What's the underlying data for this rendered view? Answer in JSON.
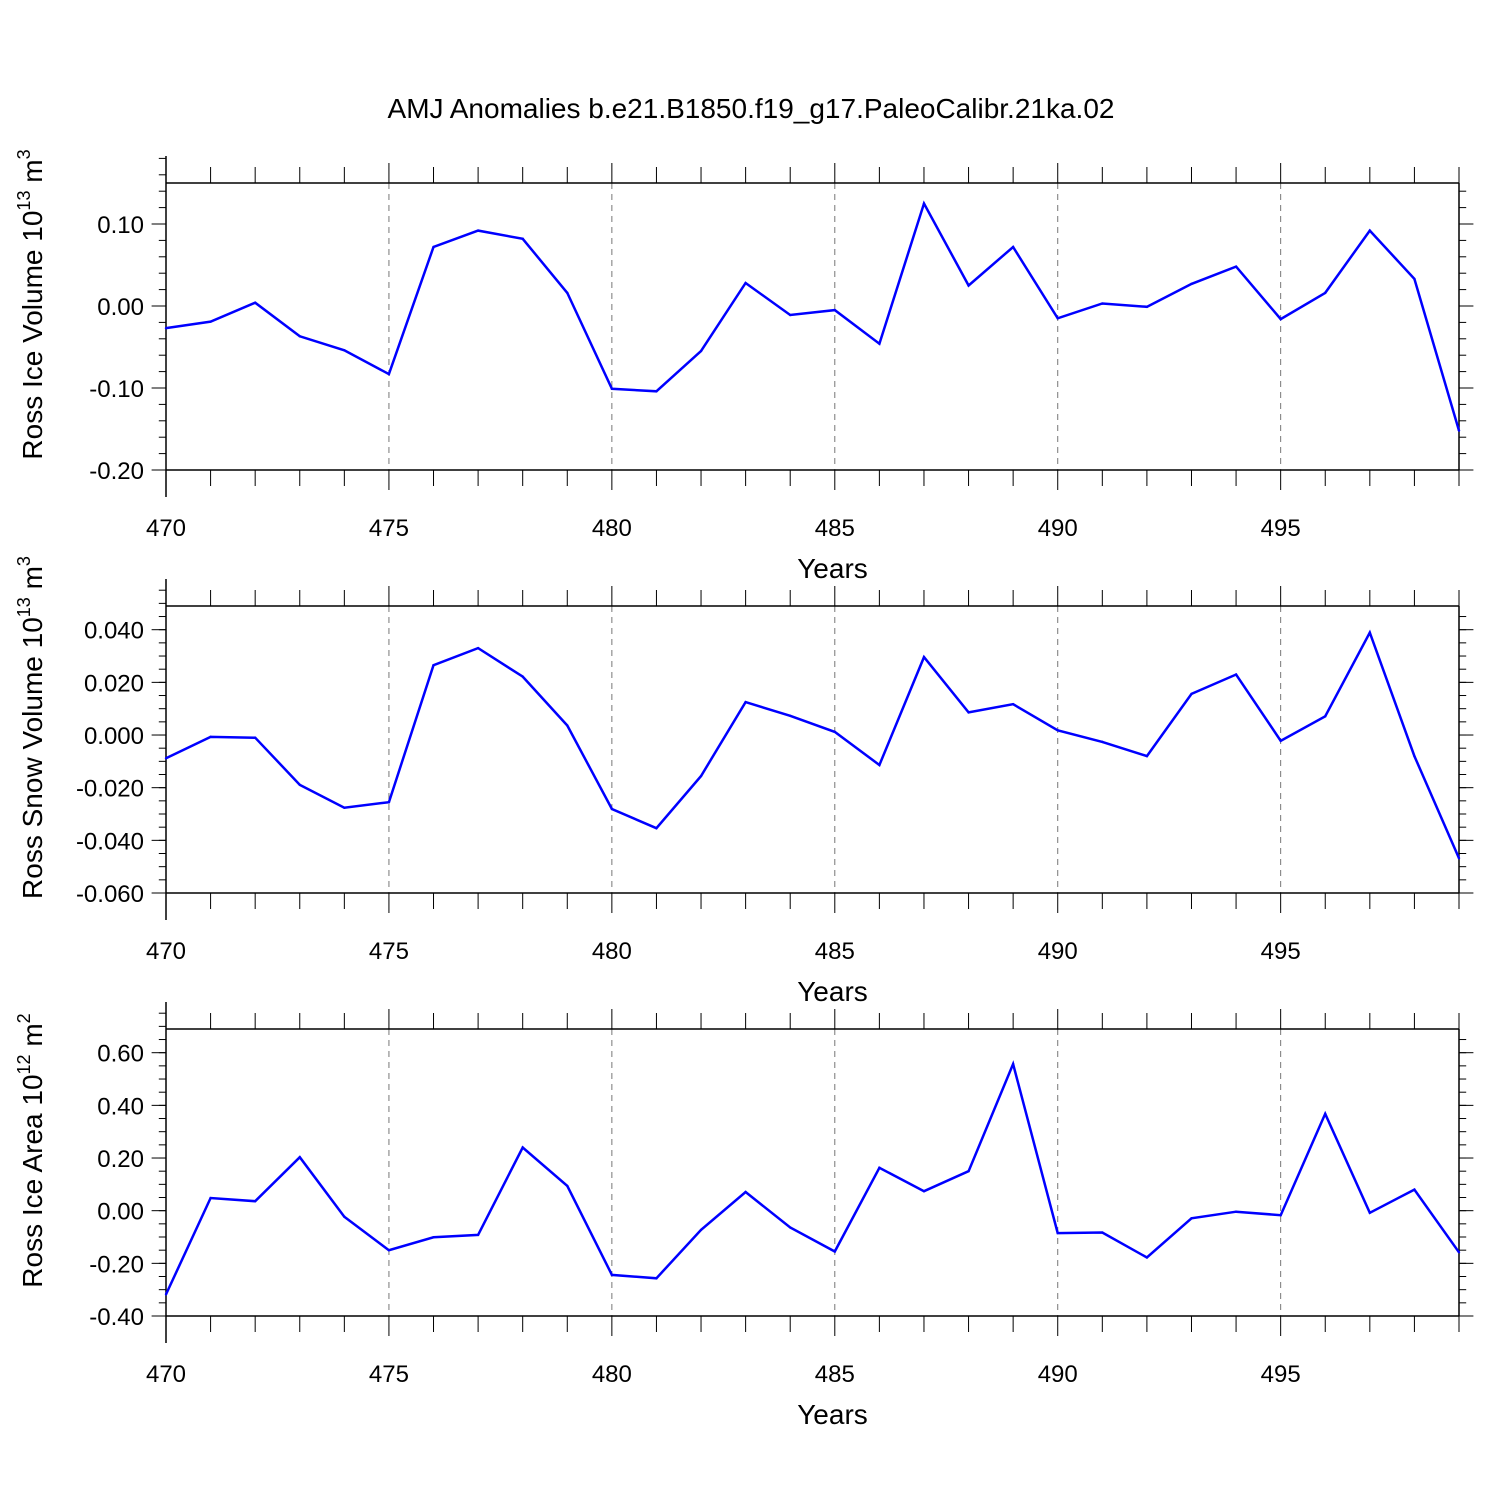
{
  "title": "AMJ Anomalies b.e21.B1850.f19_g17.PaleoCalibr.21ka.02",
  "line_color": "#0000ff",
  "chart_data": [
    {
      "type": "line",
      "xlabel": "Years",
      "ylabel": {
        "base": "Ross Ice Volume 10",
        "exp": "13",
        "unit": " m",
        "unit_exp": "3"
      },
      "xlim": [
        470,
        499
      ],
      "ylim": [
        -0.2,
        0.15
      ],
      "xticks": [
        470,
        475,
        480,
        485,
        490,
        495
      ],
      "yticks": [
        -0.2,
        -0.1,
        0.0,
        0.1
      ],
      "ytick_labels": [
        "-0.20",
        "-0.10",
        "0.00",
        "0.10"
      ],
      "yminor_step": 0.02,
      "grid": "vertical dashed at major x ticks",
      "x": [
        470,
        471,
        472,
        473,
        474,
        475,
        476,
        477,
        478,
        479,
        480,
        481,
        482,
        483,
        484,
        485,
        486,
        487,
        488,
        489,
        490,
        491,
        492,
        493,
        494,
        495,
        496,
        497,
        498,
        499
      ],
      "values": [
        -0.027,
        -0.019,
        0.004,
        -0.037,
        -0.054,
        -0.083,
        0.072,
        0.092,
        0.082,
        0.016,
        -0.101,
        -0.104,
        -0.055,
        0.028,
        -0.011,
        -0.005,
        -0.046,
        0.125,
        0.025,
        0.072,
        -0.015,
        0.003,
        -0.001,
        0.027,
        0.048,
        -0.016,
        0.016,
        0.092,
        0.033,
        -0.152
      ]
    },
    {
      "type": "line",
      "xlabel": "Years",
      "ylabel": {
        "base": "Ross Snow Volume 10",
        "exp": "13",
        "unit": " m",
        "unit_exp": "3"
      },
      "xlim": [
        470,
        499
      ],
      "ylim": [
        -0.06,
        0.049
      ],
      "xticks": [
        470,
        475,
        480,
        485,
        490,
        495
      ],
      "yticks": [
        -0.06,
        -0.04,
        -0.02,
        0.0,
        0.02,
        0.04
      ],
      "ytick_labels": [
        "-0.060",
        "-0.040",
        "-0.020",
        "0.000",
        "0.020",
        "0.040"
      ],
      "yminor_step": 0.005,
      "grid": "vertical dashed at major x ticks",
      "x": [
        470,
        471,
        472,
        473,
        474,
        475,
        476,
        477,
        478,
        479,
        480,
        481,
        482,
        483,
        484,
        485,
        486,
        487,
        488,
        489,
        490,
        491,
        492,
        493,
        494,
        495,
        496,
        497,
        498,
        499
      ],
      "values": [
        -0.0088,
        -0.0007,
        -0.001,
        -0.0189,
        -0.0276,
        -0.0255,
        0.0265,
        0.033,
        0.0222,
        0.0036,
        -0.0281,
        -0.0354,
        -0.0156,
        0.0125,
        0.0073,
        0.0012,
        -0.0114,
        0.0296,
        0.0086,
        0.0117,
        0.0018,
        -0.0026,
        -0.008,
        0.0156,
        0.023,
        -0.0022,
        0.0071,
        0.0389,
        -0.008,
        -0.0468
      ]
    },
    {
      "type": "line",
      "xlabel": "Years",
      "ylabel": {
        "base": "Ross Ice Area 10",
        "exp": "12",
        "unit": " m",
        "unit_exp": "2"
      },
      "xlim": [
        470,
        499
      ],
      "ylim": [
        -0.4,
        0.69
      ],
      "xticks": [
        470,
        475,
        480,
        485,
        490,
        495
      ],
      "yticks": [
        -0.4,
        -0.2,
        0.0,
        0.2,
        0.4,
        0.6
      ],
      "ytick_labels": [
        "-0.40",
        "-0.20",
        "0.00",
        "0.20",
        "0.40",
        "0.60"
      ],
      "yminor_step": 0.05,
      "grid": "vertical dashed at major x ticks",
      "x": [
        470,
        471,
        472,
        473,
        474,
        475,
        476,
        477,
        478,
        479,
        480,
        481,
        482,
        483,
        484,
        485,
        486,
        487,
        488,
        489,
        490,
        491,
        492,
        493,
        494,
        495,
        496,
        497,
        498,
        499
      ],
      "values": [
        -0.318,
        0.048,
        0.036,
        0.203,
        -0.023,
        -0.15,
        -0.101,
        -0.092,
        0.24,
        0.094,
        -0.244,
        -0.257,
        -0.073,
        0.071,
        -0.064,
        -0.155,
        0.163,
        0.074,
        0.15,
        0.557,
        -0.085,
        -0.083,
        -0.178,
        -0.029,
        -0.004,
        -0.017,
        0.368,
        -0.008,
        0.08,
        -0.158
      ]
    }
  ]
}
